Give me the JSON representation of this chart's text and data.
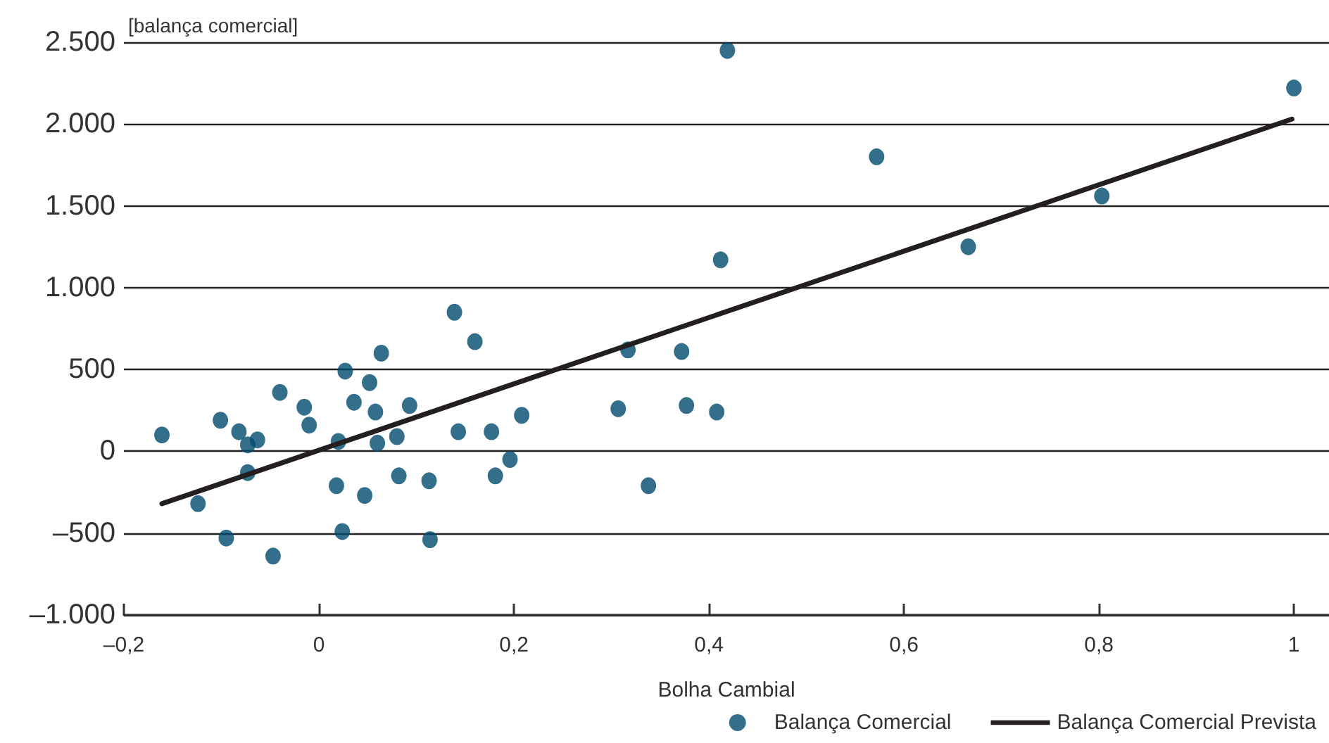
{
  "chart_data": {
    "type": "scatter",
    "xlabel": "Bolha Cambial",
    "ylabel": "[balança comercial]",
    "series": [
      {
        "name": "Balança Comercial",
        "color": "#004a6e",
        "marker": "circle",
        "x": [
          -0.161,
          -0.124,
          -0.101,
          -0.095,
          -0.082,
          -0.073,
          -0.063,
          -0.073,
          -0.047,
          -0.04,
          -0.015,
          -0.01,
          0.018,
          0.02,
          0.024,
          0.027,
          0.036,
          0.047,
          0.052,
          0.058,
          0.06,
          0.064,
          0.08,
          0.082,
          0.093,
          0.113,
          0.114,
          0.139,
          0.143,
          0.16,
          0.177,
          0.181,
          0.196,
          0.208,
          0.307,
          0.317,
          0.338,
          0.372,
          0.377,
          0.408,
          0.412,
          0.419,
          0.572,
          0.666,
          0.803,
          1.0
        ],
        "values": [
          100,
          -320,
          190,
          -530,
          120,
          40,
          70,
          -130,
          -640,
          360,
          270,
          160,
          -210,
          60,
          -490,
          490,
          300,
          -270,
          420,
          240,
          50,
          600,
          90,
          -150,
          280,
          -180,
          -540,
          850,
          120,
          670,
          120,
          -150,
          -50,
          220,
          260,
          620,
          -210,
          610,
          280,
          240,
          1170,
          2450,
          1800,
          1250,
          1560,
          2220
        ]
      },
      {
        "name": "Balança Comercial Prevista",
        "type": "line",
        "color": "#231f20",
        "marker": "none",
        "line_style": "solid",
        "x": [
          -0.161,
          0.998
        ],
        "values": [
          -320,
          2030
        ]
      }
    ],
    "xlim": [
      -0.2,
      1.036
    ],
    "xticks": [
      {
        "value": -0.2,
        "label": "–0,2"
      },
      0,
      {
        "value": 0.2,
        "label": "0,2"
      },
      {
        "value": 0.4,
        "label": "0,4"
      },
      {
        "value": 0.6,
        "label": "0,6"
      },
      {
        "value": 0.8,
        "label": "0,8"
      },
      1
    ],
    "ylim": [
      -1000,
      2500
    ],
    "yticks": [
      {
        "value": -1000,
        "label": "–1.000"
      },
      {
        "value": -500,
        "label": "–500"
      },
      0,
      500,
      {
        "value": 1000,
        "label": "1.000"
      },
      {
        "value": 1500,
        "label": "1.500"
      },
      {
        "value": 2000,
        "label": "2.000"
      },
      {
        "value": 2500,
        "label": "2.500"
      }
    ],
    "grid": "y",
    "legend": "bottom right"
  }
}
